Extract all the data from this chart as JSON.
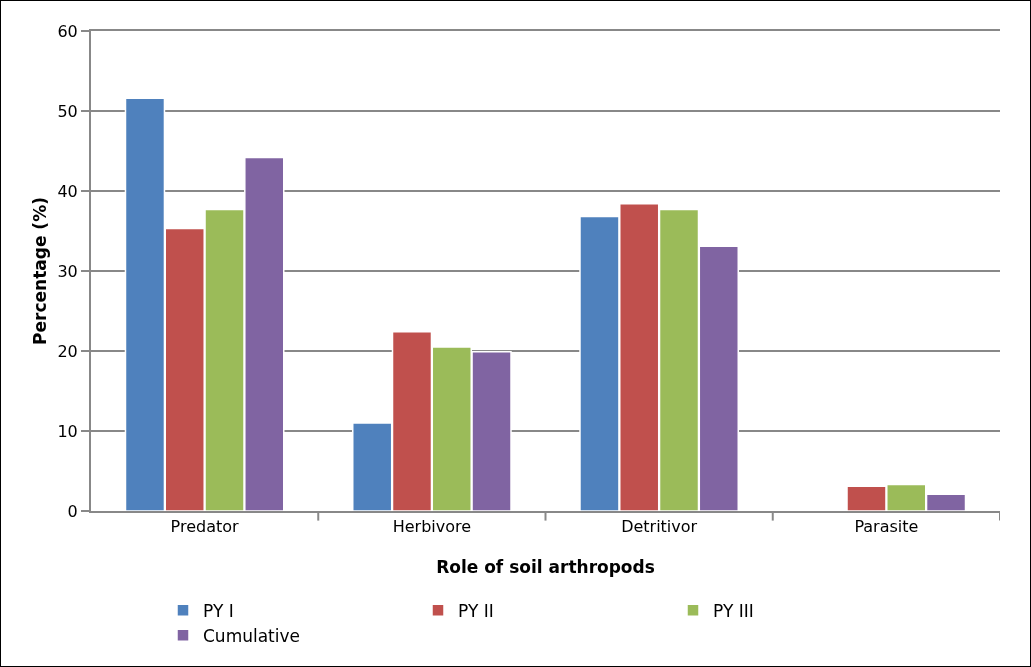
{
  "chart_data": {
    "type": "bar",
    "xlabel": "Role of soil arthropods",
    "ylabel": "Percentage (%)",
    "categories": [
      "Predator",
      "Herbivore",
      "Detritivor",
      "Parasite"
    ],
    "series": [
      {
        "name": "PY I",
        "color": "#4f81bd",
        "values": [
          51.6,
          11.0,
          36.8,
          null
        ]
      },
      {
        "name": "PY II",
        "color": "#c0504d",
        "values": [
          35.3,
          22.4,
          38.4,
          3.1
        ]
      },
      {
        "name": "PY III",
        "color": "#9bbb59",
        "values": [
          37.7,
          20.5,
          37.7,
          3.3
        ]
      },
      {
        "name": "Cumulative",
        "color": "#8064a2",
        "values": [
          44.2,
          19.9,
          33.1,
          2.1
        ]
      }
    ],
    "ylim": [
      0,
      60
    ],
    "yticks": [
      0,
      10,
      20,
      30,
      40,
      50,
      60
    ],
    "grid": "y",
    "legend": "bottom"
  }
}
